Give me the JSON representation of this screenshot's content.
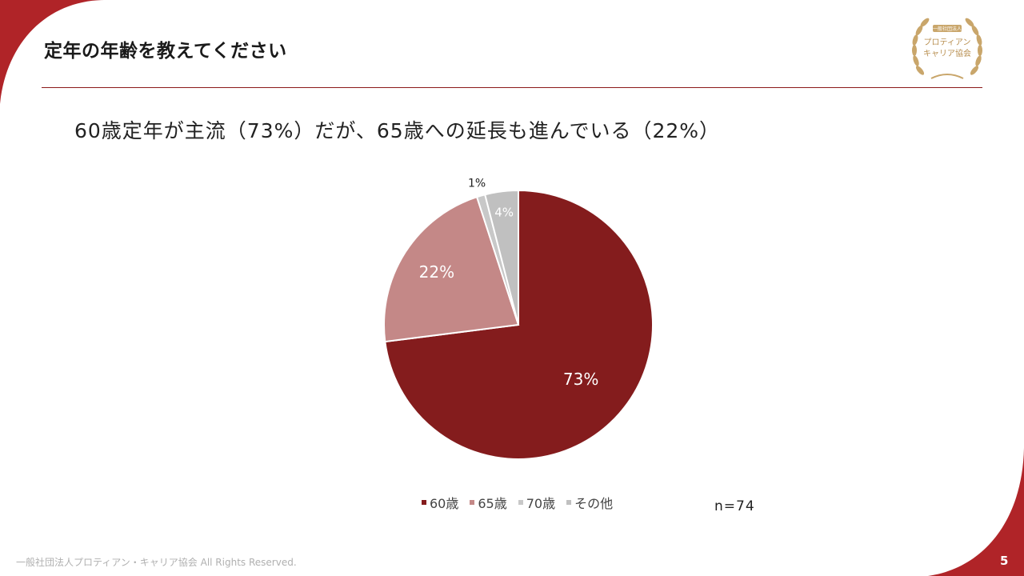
{
  "slide": {
    "title": "定年の年齢を教えてください",
    "subtitle": "60歳定年が主流（73%）だが、65歳への延長も進んでいる（22%）",
    "n_note": "n=74",
    "footer": "一般社団法人プロティアン・キャリア協会 All Rights Reserved.",
    "page_number": "5",
    "logo": {
      "top": "一般社団法人",
      "line1": "プロティアン",
      "line2": "キャリア協会"
    },
    "colors": {
      "accent": "#b02428",
      "rule": "#8b1a1a",
      "gold": "#c9a66b"
    }
  },
  "chart_data": {
    "type": "pie",
    "categories": [
      "60歳",
      "65歳",
      "70歳",
      "その他"
    ],
    "values": [
      73,
      22,
      1,
      4
    ],
    "labels": [
      "73%",
      "22%",
      "1%",
      "4%"
    ],
    "colors": [
      "#841c1d",
      "#c48887",
      "#c8c8c8",
      "#c0c0c0"
    ],
    "label_colors": [
      "#ffffff",
      "#ffffff",
      "#222222",
      "#ffffff"
    ],
    "legend_position": "bottom"
  }
}
